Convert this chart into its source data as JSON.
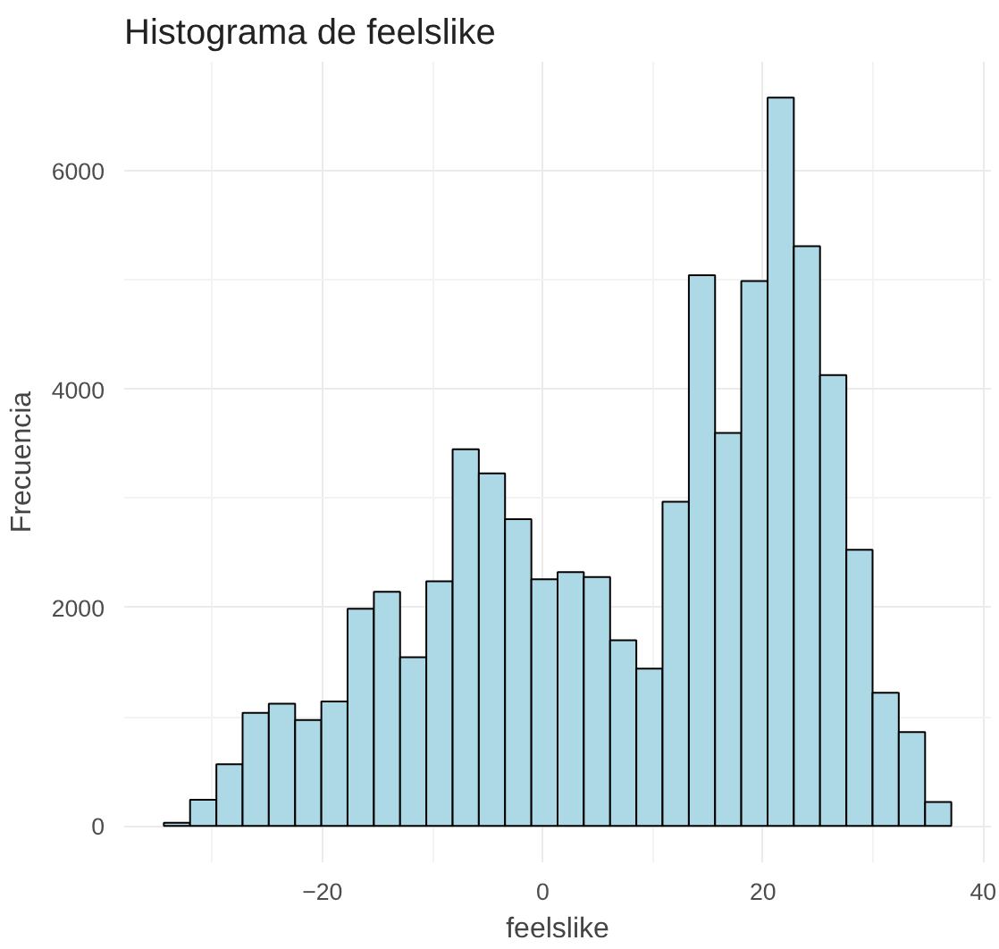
{
  "chart_data": {
    "type": "histogram",
    "title": "Histograma de feelslike",
    "xlabel": "feelslike",
    "ylabel": "Frecuencia",
    "bins": [
      -34.4,
      -32.02,
      -29.63,
      -27.25,
      -24.87,
      -22.48,
      -20.1,
      -17.72,
      -15.33,
      -12.95,
      -10.57,
      -8.18,
      -5.8,
      -3.42,
      -1.03,
      1.35,
      3.73,
      6.12,
      8.5,
      10.88,
      13.27,
      15.65,
      18.03,
      20.42,
      22.8,
      25.18,
      27.57,
      29.95,
      32.33,
      34.72,
      37.1
    ],
    "values": [
      30,
      240,
      565,
      1035,
      1120,
      970,
      1140,
      1990,
      2145,
      1545,
      2240,
      3450,
      3230,
      2810,
      2260,
      2325,
      2280,
      1700,
      1440,
      2970,
      5045,
      3600,
      4990,
      6670,
      5310,
      4130,
      2530,
      1220,
      860,
      220
    ],
    "color": "#add8e6",
    "xlim": [
      -38,
      40.7
    ],
    "xticks": [
      -20,
      0,
      20,
      40
    ],
    "ylim": [
      -333,
      7000
    ],
    "yticks": [
      0,
      2000,
      4000,
      6000
    ],
    "grid": true
  }
}
